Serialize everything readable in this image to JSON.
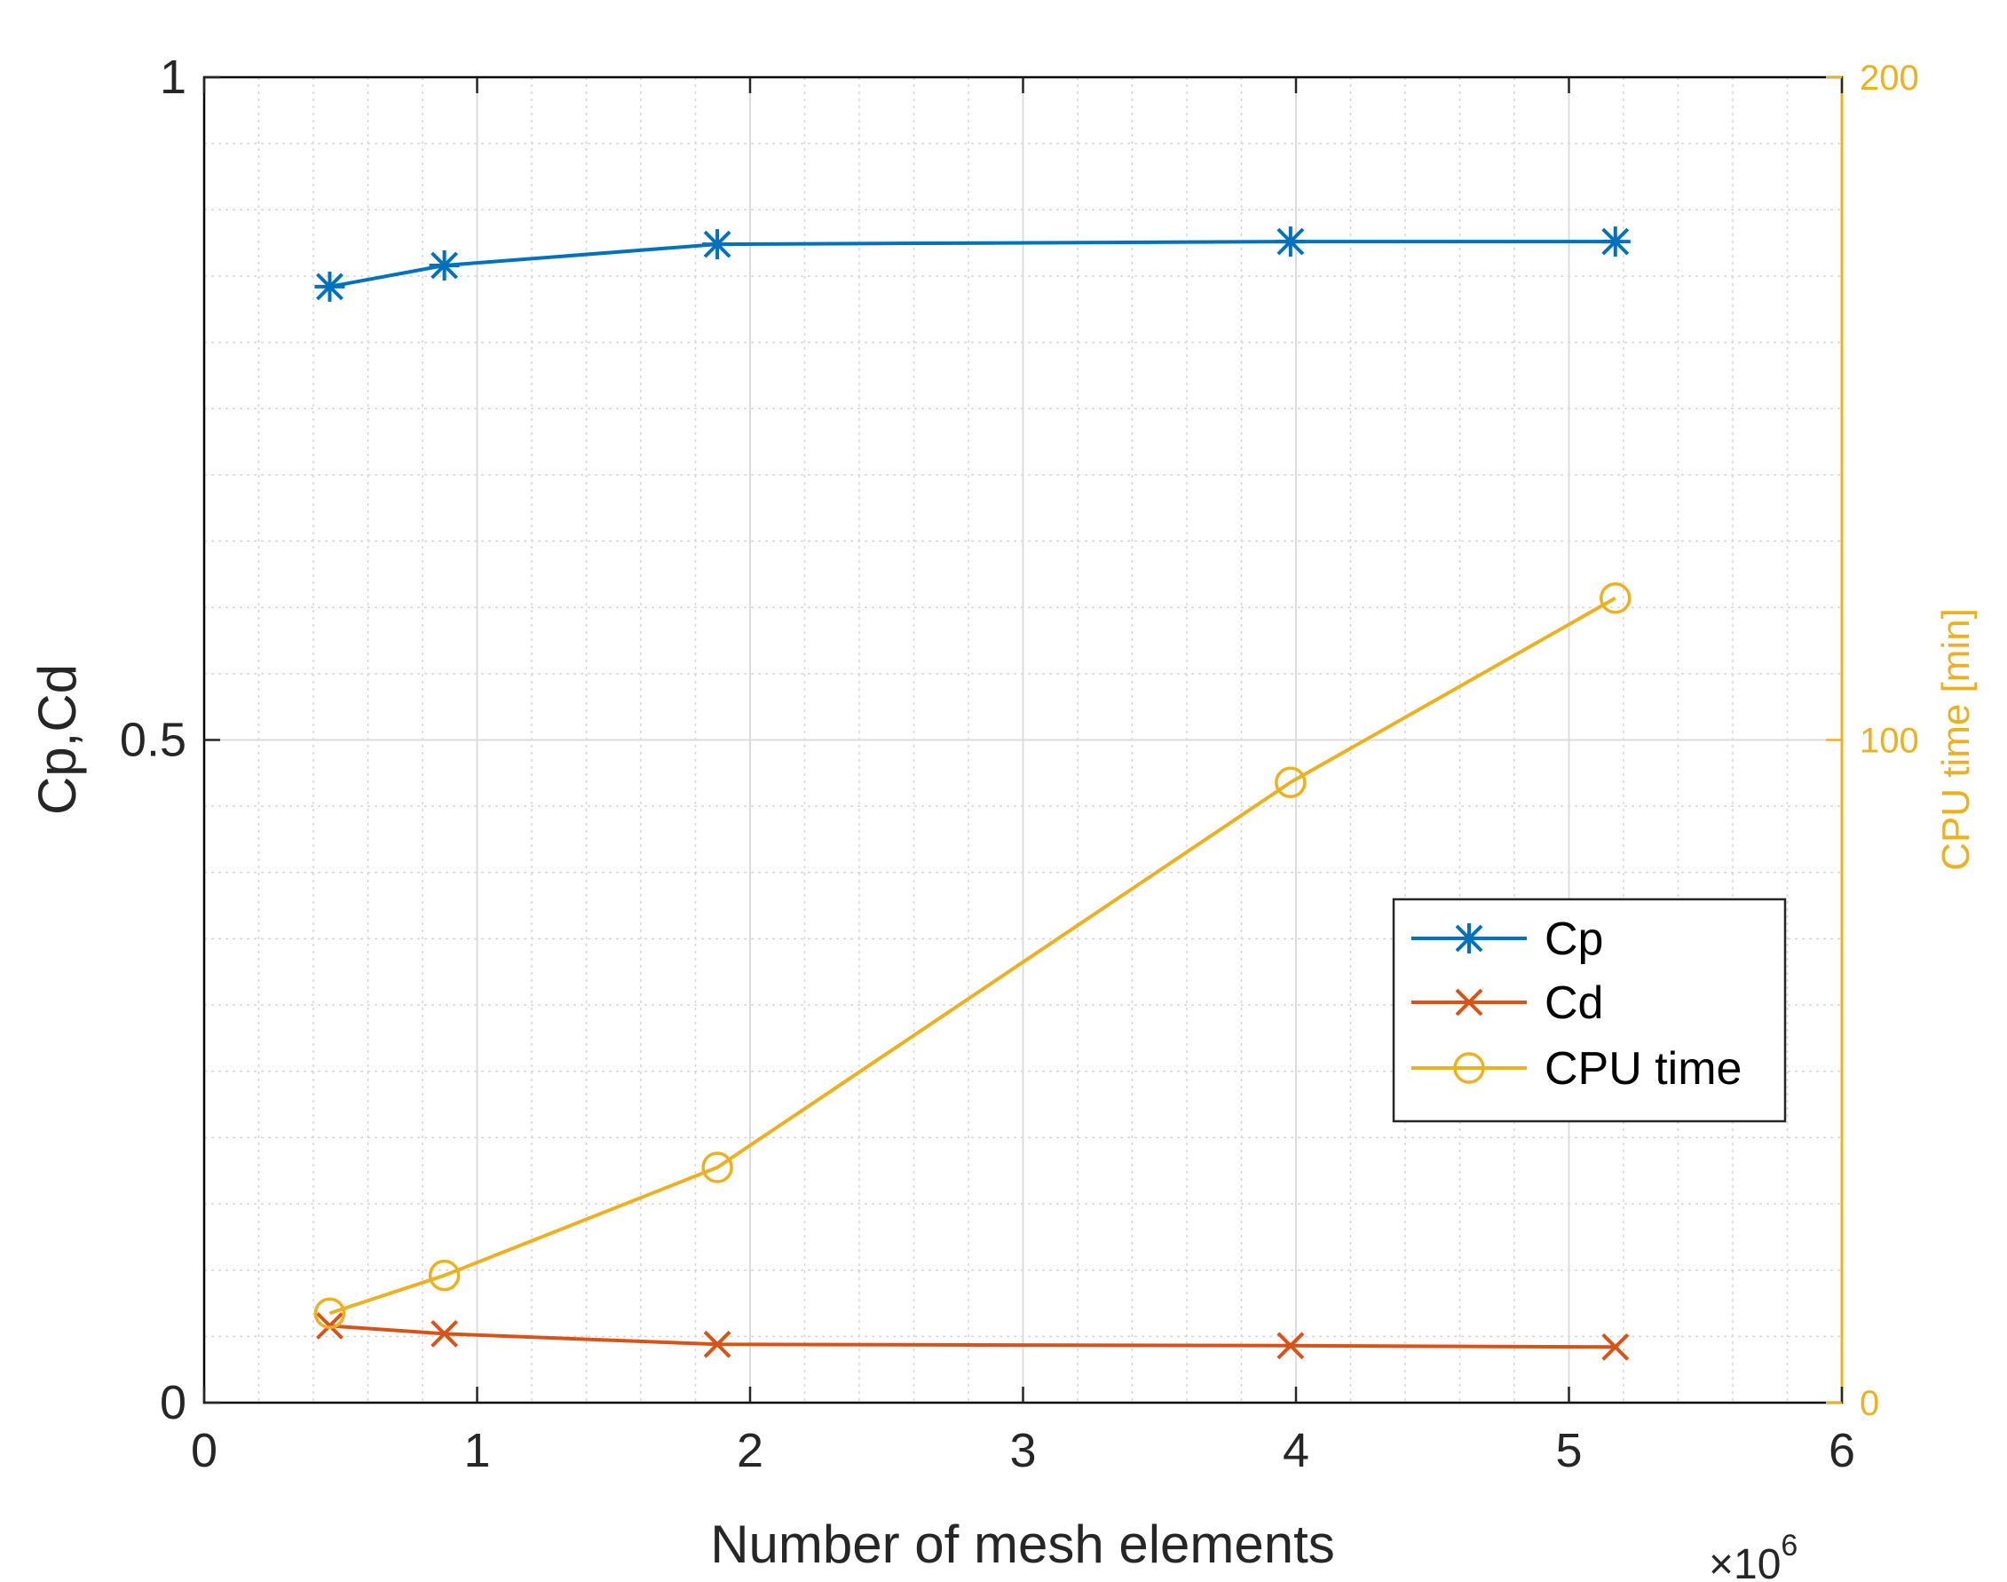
{
  "chart_data": {
    "type": "line",
    "title": "",
    "xlabel": "Number of mesh elements",
    "x_exponent_label": "×10",
    "x_exponent_power": "6",
    "ylabel": "Cp,Cd",
    "ylabel_right": "CPU time [min]",
    "xlim": [
      0,
      6
    ],
    "ylim": [
      0,
      1
    ],
    "ylim_right": [
      0,
      200
    ],
    "x_ticks": [
      0,
      1,
      2,
      3,
      4,
      5,
      6
    ],
    "x_tick_labels": [
      "0",
      "1",
      "2",
      "3",
      "4",
      "5",
      "6"
    ],
    "y_ticks": [
      0,
      0.5,
      1
    ],
    "y_tick_labels": [
      "0",
      "0.5",
      "1"
    ],
    "y_right_ticks": [
      0,
      100,
      200
    ],
    "y_right_tick_labels": [
      "0",
      "100",
      "200"
    ],
    "grid": true,
    "minor_grid": true,
    "legend_position": "center-right",
    "x": [
      0.46,
      0.88,
      1.88,
      3.98,
      5.17
    ],
    "series": [
      {
        "name": "Cp",
        "axis": "left",
        "marker": "asterisk",
        "color": "#0072BD",
        "values": [
          0.842,
          0.858,
          0.874,
          0.876,
          0.876
        ]
      },
      {
        "name": "Cd",
        "axis": "left",
        "marker": "x",
        "color": "#D95319",
        "values": [
          0.058,
          0.052,
          0.044,
          0.043,
          0.042
        ]
      },
      {
        "name": "CPU time",
        "axis": "right",
        "marker": "circle",
        "color": "#EDB120",
        "values": [
          13.5,
          19.2,
          35.5,
          93.6,
          121.4
        ]
      }
    ]
  }
}
